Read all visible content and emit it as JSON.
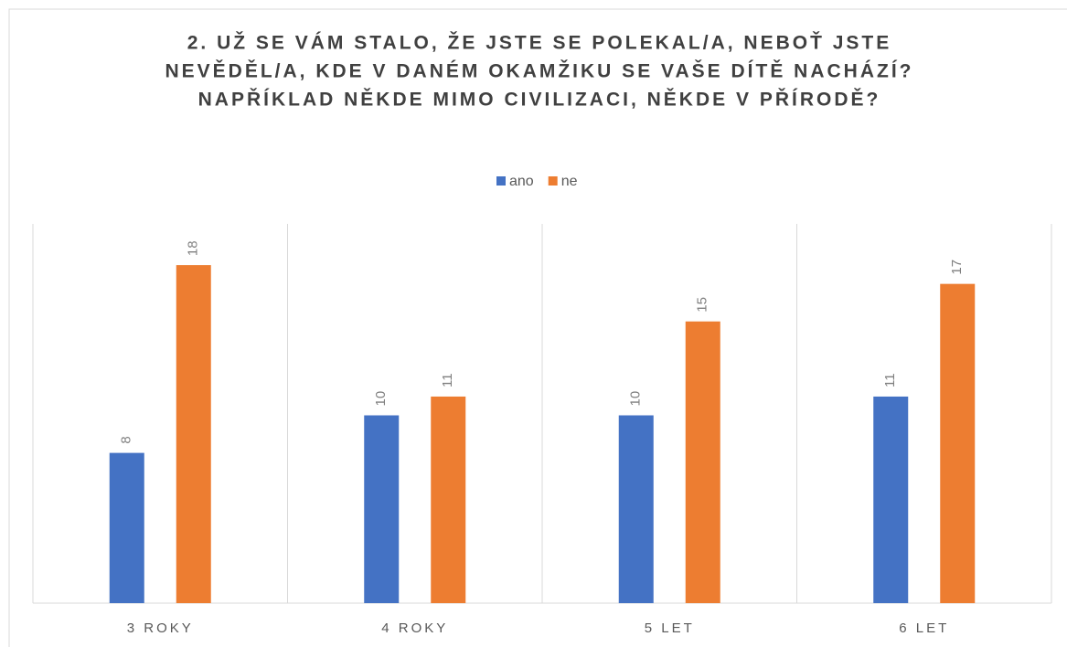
{
  "chart_data": {
    "type": "bar",
    "title": [
      "2. UŽ SE VÁM STALO, ŽE JSTE SE POLEKAL/A, NEBOŤ JSTE",
      "NEVĚDĚL/A, KDE V DANÉM OKAMŽIKU SE VAŠE DÍTĚ NACHÁZÍ?",
      "NAPŘÍKLAD NĚKDE MIMO CIVILIZACI, NĚKDE V PŘÍRODĚ?"
    ],
    "categories": [
      "3 ROKY",
      "4 ROKY",
      "5 LET",
      "6 LET"
    ],
    "series": [
      {
        "name": "ano",
        "color": "#4472c4",
        "values": [
          8,
          10,
          10,
          11
        ]
      },
      {
        "name": "ne",
        "color": "#ed7d31",
        "values": [
          18,
          11,
          15,
          17
        ]
      }
    ],
    "ylim": [
      0,
      20
    ],
    "legend": "top"
  }
}
